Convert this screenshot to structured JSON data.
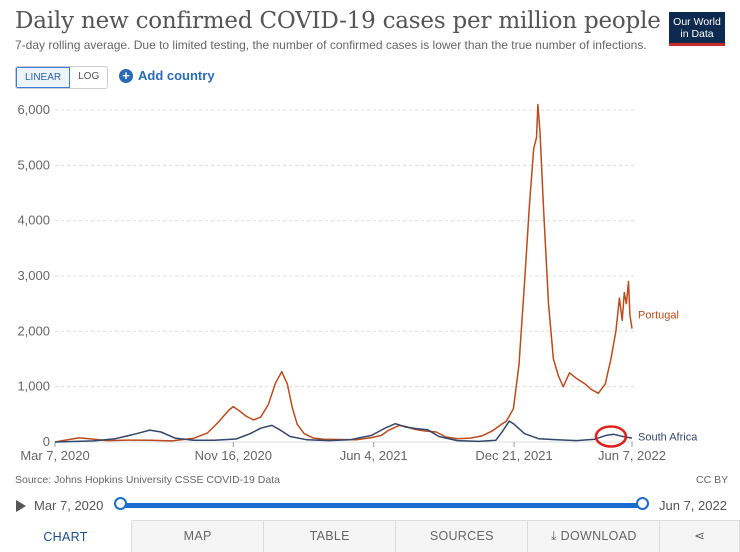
{
  "header": {
    "title": "Daily new confirmed COVID-19 cases per million people",
    "subtitle": "7-day rolling average. Due to limited testing, the number of confirmed cases is lower than the true number of infections.",
    "logo_line1": "Our World",
    "logo_line2": "in Data"
  },
  "controls": {
    "linear_label": "LINEAR",
    "log_label": "LOG",
    "add_country_label": "Add country"
  },
  "footer": {
    "source": "Source: Johns Hopkins University CSSE COVID-19 Data",
    "license": "CC BY"
  },
  "timeline": {
    "start_label": "Mar 7, 2020",
    "end_label": "Jun 7, 2022"
  },
  "tabs": [
    {
      "label": "CHART"
    },
    {
      "label": "MAP"
    },
    {
      "label": "TABLE"
    },
    {
      "label": "SOURCES"
    },
    {
      "label": "DOWNLOAD"
    },
    {
      "label": "share-icon"
    }
  ],
  "colors": {
    "portugal": "#b94b1c",
    "south_africa": "#34466b",
    "annotation": "#e0201b",
    "grid": "#dddddd"
  },
  "chart_data": {
    "type": "line",
    "title": "Daily new confirmed COVID-19 cases per million people",
    "x_type": "date",
    "x_ticks": [
      "2020-03-07",
      "2020-11-16",
      "2021-06-04",
      "2021-12-21",
      "2022-06-07"
    ],
    "x_tick_labels": [
      "Mar 7, 2020",
      "Nov 16, 2020",
      "Jun 4, 2021",
      "Dec 21, 2021",
      "Jun 7, 2022"
    ],
    "xlim": [
      "2020-03-07",
      "2022-06-07"
    ],
    "ylim": [
      0,
      6000
    ],
    "y_ticks": [
      0,
      1000,
      2000,
      3000,
      4000,
      5000,
      6000
    ],
    "y_tick_labels": [
      "0",
      "1,000",
      "2,000",
      "3,000",
      "4,000",
      "5,000",
      "6,000"
    ],
    "grid": true,
    "series": [
      {
        "name": "Portugal",
        "color": "#b94b1c",
        "points": [
          [
            "2020-03-07",
            0
          ],
          [
            "2020-03-25",
            40
          ],
          [
            "2020-04-10",
            75
          ],
          [
            "2020-04-25",
            60
          ],
          [
            "2020-05-20",
            25
          ],
          [
            "2020-06-20",
            35
          ],
          [
            "2020-07-20",
            30
          ],
          [
            "2020-08-20",
            20
          ],
          [
            "2020-09-20",
            65
          ],
          [
            "2020-10-10",
            160
          ],
          [
            "2020-10-25",
            350
          ],
          [
            "2020-11-10",
            580
          ],
          [
            "2020-11-16",
            640
          ],
          [
            "2020-11-25",
            560
          ],
          [
            "2020-12-05",
            460
          ],
          [
            "2020-12-15",
            400
          ],
          [
            "2020-12-25",
            450
          ],
          [
            "2021-01-05",
            680
          ],
          [
            "2021-01-15",
            1060
          ],
          [
            "2021-01-24",
            1270
          ],
          [
            "2021-02-01",
            1050
          ],
          [
            "2021-02-08",
            620
          ],
          [
            "2021-02-15",
            320
          ],
          [
            "2021-02-25",
            150
          ],
          [
            "2021-03-10",
            70
          ],
          [
            "2021-03-25",
            50
          ],
          [
            "2021-04-15",
            45
          ],
          [
            "2021-05-10",
            40
          ],
          [
            "2021-06-01",
            80
          ],
          [
            "2021-06-15",
            120
          ],
          [
            "2021-06-25",
            210
          ],
          [
            "2021-07-10",
            300
          ],
          [
            "2021-07-20",
            280
          ],
          [
            "2021-08-01",
            230
          ],
          [
            "2021-08-15",
            200
          ],
          [
            "2021-09-01",
            180
          ],
          [
            "2021-09-15",
            90
          ],
          [
            "2021-10-01",
            60
          ],
          [
            "2021-10-20",
            70
          ],
          [
            "2021-11-05",
            110
          ],
          [
            "2021-11-20",
            200
          ],
          [
            "2021-12-01",
            300
          ],
          [
            "2021-12-10",
            380
          ],
          [
            "2021-12-20",
            600
          ],
          [
            "2021-12-28",
            1400
          ],
          [
            "2022-01-05",
            2900
          ],
          [
            "2022-01-12",
            4300
          ],
          [
            "2022-01-18",
            5300
          ],
          [
            "2022-01-22",
            5500
          ],
          [
            "2022-01-24",
            6100
          ],
          [
            "2022-01-27",
            5600
          ],
          [
            "2022-02-01",
            4200
          ],
          [
            "2022-02-08",
            2500
          ],
          [
            "2022-02-15",
            1500
          ],
          [
            "2022-02-22",
            1200
          ],
          [
            "2022-03-01",
            1000
          ],
          [
            "2022-03-10",
            1250
          ],
          [
            "2022-03-20",
            1150
          ],
          [
            "2022-04-01",
            1050
          ],
          [
            "2022-04-10",
            950
          ],
          [
            "2022-04-20",
            880
          ],
          [
            "2022-04-30",
            1050
          ],
          [
            "2022-05-08",
            1500
          ],
          [
            "2022-05-15",
            2000
          ],
          [
            "2022-05-20",
            2600
          ],
          [
            "2022-05-24",
            2200
          ],
          [
            "2022-05-27",
            2700
          ],
          [
            "2022-05-30",
            2500
          ],
          [
            "2022-06-02",
            2900
          ],
          [
            "2022-06-04",
            2300
          ],
          [
            "2022-06-07",
            2050
          ]
        ]
      },
      {
        "name": "South Africa",
        "color": "#34466b",
        "points": [
          [
            "2020-03-07",
            0
          ],
          [
            "2020-05-01",
            20
          ],
          [
            "2020-06-01",
            60
          ],
          [
            "2020-07-01",
            150
          ],
          [
            "2020-07-20",
            215
          ],
          [
            "2020-08-05",
            180
          ],
          [
            "2020-08-25",
            70
          ],
          [
            "2020-09-20",
            30
          ],
          [
            "2020-10-20",
            30
          ],
          [
            "2020-11-20",
            55
          ],
          [
            "2020-12-10",
            150
          ],
          [
            "2020-12-25",
            250
          ],
          [
            "2021-01-10",
            300
          ],
          [
            "2021-01-20",
            230
          ],
          [
            "2021-02-05",
            100
          ],
          [
            "2021-03-01",
            40
          ],
          [
            "2021-04-01",
            25
          ],
          [
            "2021-05-01",
            40
          ],
          [
            "2021-06-01",
            120
          ],
          [
            "2021-06-20",
            250
          ],
          [
            "2021-07-05",
            330
          ],
          [
            "2021-07-20",
            270
          ],
          [
            "2021-08-05",
            240
          ],
          [
            "2021-08-20",
            220
          ],
          [
            "2021-09-05",
            100
          ],
          [
            "2021-10-01",
            25
          ],
          [
            "2021-11-01",
            10
          ],
          [
            "2021-11-25",
            30
          ],
          [
            "2021-12-05",
            200
          ],
          [
            "2021-12-14",
            380
          ],
          [
            "2021-12-20",
            330
          ],
          [
            "2022-01-05",
            150
          ],
          [
            "2022-01-25",
            60
          ],
          [
            "2022-02-20",
            40
          ],
          [
            "2022-03-20",
            25
          ],
          [
            "2022-04-15",
            50
          ],
          [
            "2022-05-01",
            120
          ],
          [
            "2022-05-12",
            140
          ],
          [
            "2022-05-25",
            100
          ],
          [
            "2022-06-07",
            70
          ]
        ]
      }
    ],
    "annotations": [
      {
        "type": "circle",
        "x": "2022-05-08",
        "y": 100,
        "color": "#e0201b"
      }
    ]
  }
}
